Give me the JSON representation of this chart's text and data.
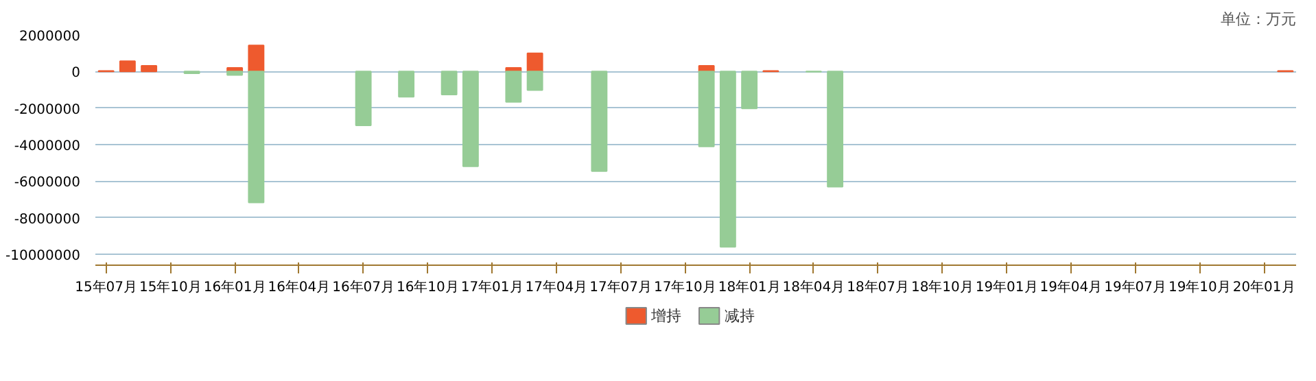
{
  "chart_data": {
    "type": "bar",
    "annotations": [
      "单位：万元"
    ],
    "categories": [
      "15年07月",
      null,
      null,
      "15年10月",
      null,
      null,
      "16年01月",
      null,
      null,
      "16年04月",
      null,
      null,
      "16年07月",
      null,
      null,
      "16年10月",
      null,
      null,
      "17年01月",
      null,
      null,
      "17年04月",
      null,
      null,
      "17年07月",
      null,
      null,
      "17年10月",
      null,
      null,
      "18年01月",
      null,
      null,
      "18年04月",
      null,
      null,
      "18年07月",
      null,
      null,
      "18年10月",
      null,
      null,
      "19年01月",
      null,
      null,
      "19年04月",
      null,
      null,
      "19年07月",
      null,
      null,
      "19年10月",
      null,
      null,
      "20年01月",
      null
    ],
    "series": [
      {
        "name": "增持",
        "color": "#ee5a2e",
        "values": [
          30000,
          570000,
          310000,
          null,
          null,
          null,
          200000,
          1430000,
          null,
          null,
          null,
          null,
          null,
          null,
          null,
          null,
          null,
          null,
          null,
          200000,
          1000000,
          null,
          null,
          null,
          null,
          null,
          null,
          null,
          310000,
          null,
          null,
          30000,
          null,
          null,
          null,
          null,
          null,
          null,
          null,
          null,
          null,
          null,
          null,
          null,
          null,
          null,
          null,
          null,
          null,
          null,
          null,
          null,
          null,
          null,
          null,
          30000
        ]
      },
      {
        "name": "减持",
        "color": "#96cc96",
        "values": [
          null,
          null,
          null,
          null,
          -100000,
          null,
          -190000,
          -7170000,
          null,
          null,
          null,
          null,
          -2950000,
          null,
          -1380000,
          null,
          -1260000,
          -5190000,
          null,
          -1670000,
          -1020000,
          null,
          null,
          -5450000,
          null,
          null,
          null,
          null,
          -4100000,
          -9600000,
          -2020000,
          null,
          null,
          -20000,
          -6310000,
          null,
          null,
          null,
          null,
          null,
          null,
          null,
          null,
          null,
          null,
          null,
          null,
          null,
          null,
          null,
          null,
          null,
          null,
          null,
          null,
          null
        ]
      }
    ],
    "ylim": [
      -10600000,
      2000000
    ],
    "yticks": [
      -10000000,
      -8000000,
      -6000000,
      -4000000,
      -2000000,
      0,
      2000000
    ],
    "grid": "y",
    "legend": "bottom"
  }
}
